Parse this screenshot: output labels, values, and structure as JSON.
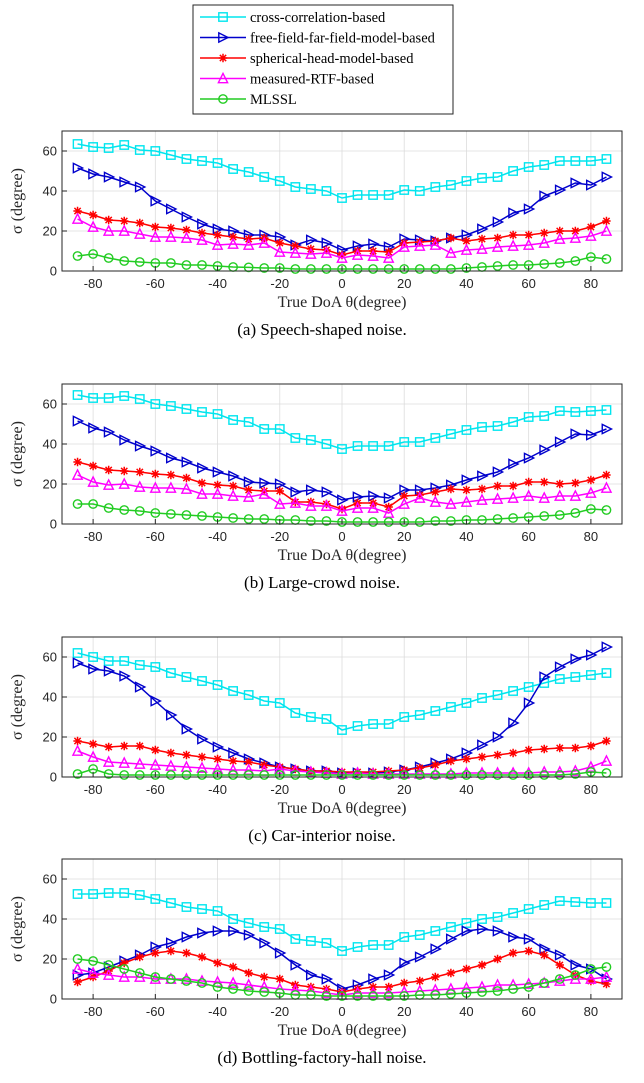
{
  "legend": {
    "entries": [
      {
        "name": "cross-correlation-based",
        "color": "#00e5ee",
        "marker": "square"
      },
      {
        "name": "free-field-far-field-model-based",
        "color": "#0000cc",
        "marker": "triangle-right"
      },
      {
        "name": "spherical-head-model-based",
        "color": "#ff0000",
        "marker": "asterisk"
      },
      {
        "name": "measured-RTF-based",
        "color": "#ff00ff",
        "marker": "triangle-up"
      },
      {
        "name": "MLSSL",
        "color": "#22cc22",
        "marker": "circle"
      }
    ]
  },
  "chart_data": [
    {
      "type": "line",
      "caption": "(a) Speech-shaped noise.",
      "xlabel": "True DoA θ(degree)",
      "ylabel": "σ (degree)",
      "xlim": [
        -90,
        90
      ],
      "ylim": [
        0,
        70
      ],
      "xticks": [
        -80,
        -60,
        -40,
        -20,
        0,
        20,
        40,
        60,
        80
      ],
      "yticks": [
        0,
        20,
        40,
        60
      ],
      "grid": true,
      "x": [
        -85,
        -80,
        -75,
        -70,
        -65,
        -60,
        -55,
        -50,
        -45,
        -40,
        -35,
        -30,
        -25,
        -20,
        -15,
        -10,
        -5,
        0,
        5,
        10,
        15,
        20,
        25,
        30,
        35,
        40,
        45,
        50,
        55,
        60,
        65,
        70,
        75,
        80,
        85
      ],
      "series": [
        {
          "name": "cross-correlation-based",
          "values": [
            63.5,
            62,
            61.5,
            63,
            60.5,
            60,
            58,
            56,
            55,
            54,
            51,
            49.5,
            47,
            45,
            42,
            41,
            40,
            36.5,
            38,
            38,
            38,
            40.5,
            40,
            42,
            43,
            45,
            46.5,
            47,
            50,
            52,
            53,
            55,
            55,
            55,
            56
          ]
        },
        {
          "name": "free-field-far-field-model-based",
          "values": [
            51.5,
            48.5,
            47,
            44.5,
            42,
            35,
            31,
            27,
            23.5,
            21,
            20,
            18,
            18,
            17,
            13,
            15.5,
            14,
            10.5,
            12.5,
            13.5,
            12,
            16,
            15.5,
            15,
            16.5,
            18,
            21,
            24.5,
            29,
            31,
            37.5,
            40.5,
            44,
            43,
            47
          ]
        },
        {
          "name": "spherical-head-model-based",
          "values": [
            30,
            28,
            25.5,
            25,
            24,
            22,
            21.5,
            20.5,
            19,
            18,
            17,
            16,
            16.5,
            14,
            12.5,
            11,
            10.5,
            8,
            10,
            10,
            9.5,
            14,
            14.5,
            15,
            16.5,
            15,
            16,
            16.5,
            18,
            18,
            19,
            20,
            20,
            22,
            25
          ]
        },
        {
          "name": "measured-RTF-based",
          "values": [
            26,
            22,
            20,
            20,
            18.5,
            17,
            17,
            16.5,
            15.5,
            13,
            13.5,
            13,
            14,
            9.5,
            9,
            8.5,
            9,
            6.5,
            8,
            7.5,
            6.5,
            12,
            12.5,
            13,
            9,
            10.5,
            11,
            12,
            12.5,
            13,
            14,
            16,
            16.5,
            17.5,
            20
          ]
        },
        {
          "name": "MLSSL",
          "values": [
            7.5,
            8.5,
            6.5,
            5,
            4.5,
            4,
            4,
            3,
            3,
            2.5,
            2,
            1.8,
            1.5,
            1.5,
            1,
            1,
            1,
            1,
            1,
            1,
            1,
            1,
            1,
            1,
            1,
            1.5,
            2,
            2.5,
            3,
            3,
            3.5,
            4,
            5,
            7,
            6
          ]
        }
      ]
    },
    {
      "type": "line",
      "caption": "(b) Large-crowd noise.",
      "xlabel": "True DoA θ(degree)",
      "ylabel": "σ (degree)",
      "xlim": [
        -90,
        90
      ],
      "ylim": [
        0,
        70
      ],
      "xticks": [
        -80,
        -60,
        -40,
        -20,
        0,
        20,
        40,
        60,
        80
      ],
      "yticks": [
        0,
        20,
        40,
        60
      ],
      "grid": true,
      "x": [
        -85,
        -80,
        -75,
        -70,
        -65,
        -60,
        -55,
        -50,
        -45,
        -40,
        -35,
        -30,
        -25,
        -20,
        -15,
        -10,
        -5,
        0,
        5,
        10,
        15,
        20,
        25,
        30,
        35,
        40,
        45,
        50,
        55,
        60,
        65,
        70,
        75,
        80,
        85
      ],
      "series": [
        {
          "name": "cross-correlation-based",
          "values": [
            64.5,
            63,
            63,
            64,
            62.5,
            60,
            59,
            57.5,
            56,
            55,
            52,
            51,
            47.5,
            47.5,
            43,
            42,
            40,
            37.5,
            39,
            39,
            39,
            41,
            41,
            43,
            45,
            47,
            48.5,
            49,
            51,
            53.5,
            54,
            56.5,
            56,
            56.5,
            57
          ]
        },
        {
          "name": "free-field-far-field-model-based",
          "values": [
            51.5,
            48,
            46,
            42,
            39,
            36.5,
            33,
            31,
            28,
            26,
            24,
            21,
            20.5,
            20,
            16,
            17,
            16,
            12,
            13.5,
            14,
            13,
            17,
            17,
            18,
            19.5,
            22,
            24,
            26,
            30,
            33,
            37,
            41,
            45,
            44.5,
            47.5
          ]
        },
        {
          "name": "spherical-head-model-based",
          "values": [
            31,
            29,
            27,
            26.5,
            26,
            25,
            24.5,
            23,
            20.5,
            19.5,
            19,
            17,
            16.5,
            16.5,
            11,
            11,
            10,
            7.5,
            10.5,
            10.5,
            8.5,
            14,
            14.5,
            16,
            17.5,
            17,
            17.5,
            19,
            19,
            21,
            21,
            20,
            20.5,
            22,
            24.5
          ]
        },
        {
          "name": "measured-RTF-based",
          "values": [
            24.5,
            21,
            19.5,
            20,
            18.5,
            18,
            18,
            17.5,
            15,
            15,
            14,
            13.5,
            15,
            10,
            10.5,
            9,
            9,
            6.5,
            8,
            8,
            5.5,
            10,
            13,
            11,
            10,
            11,
            12,
            12.5,
            13,
            14,
            13,
            14,
            14,
            15.5,
            18
          ]
        },
        {
          "name": "MLSSL",
          "values": [
            10,
            10,
            8,
            7,
            6.5,
            5.5,
            5,
            4.5,
            4,
            3.5,
            3,
            2.5,
            2.5,
            2,
            2,
            1.5,
            1.5,
            1,
            1,
            1,
            1,
            1,
            1,
            1.5,
            1.5,
            2,
            2,
            2.5,
            3,
            3.5,
            4,
            4.5,
            5.5,
            7.5,
            7
          ]
        }
      ]
    },
    {
      "type": "line",
      "caption": "(c) Car-interior noise.",
      "xlabel": "True DoA θ(degree)",
      "ylabel": "σ (degree)",
      "xlim": [
        -90,
        90
      ],
      "ylim": [
        0,
        70
      ],
      "xticks": [
        -80,
        -60,
        -40,
        -20,
        0,
        20,
        40,
        60,
        80
      ],
      "yticks": [
        0,
        20,
        40,
        60
      ],
      "grid": true,
      "x": [
        -85,
        -80,
        -75,
        -70,
        -65,
        -60,
        -55,
        -50,
        -45,
        -40,
        -35,
        -30,
        -25,
        -20,
        -15,
        -10,
        -5,
        0,
        5,
        10,
        15,
        20,
        25,
        30,
        35,
        40,
        45,
        50,
        55,
        60,
        65,
        70,
        75,
        80,
        85
      ],
      "series": [
        {
          "name": "cross-correlation-based",
          "values": [
            62,
            60,
            58,
            58,
            56,
            55,
            52,
            50,
            48,
            46,
            43,
            41,
            38,
            37,
            32,
            30,
            29,
            23.5,
            25.5,
            26.5,
            26.5,
            30,
            31,
            33,
            35,
            37,
            39.5,
            41,
            43,
            45,
            47,
            49,
            50,
            51,
            52
          ]
        },
        {
          "name": "free-field-far-field-model-based",
          "values": [
            57,
            54,
            53,
            50.5,
            45,
            38,
            31,
            24,
            19,
            15,
            12,
            9,
            7,
            5,
            4,
            3,
            3,
            2,
            2,
            2,
            2.5,
            3.5,
            5,
            7,
            9,
            12,
            16,
            20,
            27,
            37,
            50,
            55,
            59,
            61,
            65
          ]
        },
        {
          "name": "spherical-head-model-based",
          "values": [
            18,
            16.5,
            15,
            15.5,
            15.5,
            13.5,
            12,
            11,
            10,
            9,
            8,
            7.5,
            6,
            5,
            4,
            3,
            3,
            2.5,
            2.5,
            2.5,
            3,
            3.5,
            4.5,
            6,
            8,
            9,
            10,
            11,
            12,
            13.5,
            14,
            14.5,
            14.5,
            15.5,
            18
          ]
        },
        {
          "name": "measured-RTF-based",
          "values": [
            13,
            10,
            7.5,
            7,
            6.5,
            6,
            5.5,
            5,
            4.5,
            4,
            3.5,
            3.5,
            3,
            4,
            3,
            2.5,
            2,
            1.5,
            2,
            1.5,
            1.5,
            1.5,
            1.5,
            1.5,
            1.5,
            2,
            2,
            2,
            2,
            2,
            2.5,
            2.5,
            3,
            5,
            8
          ]
        },
        {
          "name": "MLSSL",
          "values": [
            1.5,
            4,
            1.5,
            1,
            1,
            1,
            1,
            1,
            1,
            1,
            1,
            1,
            1,
            1,
            1,
            1,
            1,
            1,
            1,
            1,
            1,
            1,
            1,
            1,
            1,
            1,
            1,
            1,
            1,
            1,
            1,
            1,
            1.5,
            2.5,
            2
          ]
        }
      ]
    },
    {
      "type": "line",
      "caption": "(d) Bottling-factory-hall noise.",
      "xlabel": "True DoA θ(degree)",
      "ylabel": "σ (degree)",
      "xlim": [
        -90,
        90
      ],
      "ylim": [
        0,
        70
      ],
      "xticks": [
        -80,
        -60,
        -40,
        -20,
        0,
        20,
        40,
        60,
        80
      ],
      "yticks": [
        0,
        20,
        40,
        60
      ],
      "grid": true,
      "x": [
        -85,
        -80,
        -75,
        -70,
        -65,
        -60,
        -55,
        -50,
        -45,
        -40,
        -35,
        -30,
        -25,
        -20,
        -15,
        -10,
        -5,
        0,
        5,
        10,
        15,
        20,
        25,
        30,
        35,
        40,
        45,
        50,
        55,
        60,
        65,
        70,
        75,
        80,
        85
      ],
      "series": [
        {
          "name": "cross-correlation-based",
          "values": [
            52.5,
            52.5,
            53,
            53,
            52,
            50,
            48,
            46,
            45,
            44,
            40,
            38,
            36,
            35,
            30,
            29,
            28,
            24,
            26,
            27,
            27,
            31,
            32,
            34,
            36,
            38,
            40,
            41,
            43,
            45,
            47,
            49,
            48.5,
            48,
            48
          ]
        },
        {
          "name": "free-field-far-field-model-based",
          "values": [
            12,
            13,
            16,
            19,
            22,
            26,
            28,
            31,
            33,
            34,
            34,
            32,
            28,
            23,
            17,
            12,
            10,
            5,
            7,
            10,
            12,
            18,
            21,
            25,
            30,
            34,
            35,
            34,
            31,
            30,
            25,
            22,
            17,
            15,
            10
          ]
        },
        {
          "name": "spherical-head-model-based",
          "values": [
            8.5,
            11,
            14,
            18,
            21,
            23,
            24,
            23,
            21,
            18,
            16,
            13,
            11,
            10,
            7,
            6,
            5,
            3.5,
            5,
            6,
            6,
            8,
            9,
            11,
            13,
            15,
            17,
            20,
            23,
            24,
            22,
            17,
            12,
            9,
            7.5
          ]
        },
        {
          "name": "measured-RTF-based",
          "values": [
            15,
            13,
            12,
            11,
            11,
            10,
            10,
            10,
            9,
            8.5,
            8,
            7,
            6,
            5,
            4.5,
            4,
            3,
            2,
            3,
            3,
            3,
            3.5,
            4,
            4.5,
            5,
            5.5,
            6,
            7,
            7,
            7.5,
            8,
            9,
            10,
            10,
            11
          ]
        },
        {
          "name": "MLSSL",
          "values": [
            20,
            19,
            17,
            15,
            13,
            11,
            10,
            9,
            8,
            6,
            5,
            4,
            3.5,
            3,
            2,
            2,
            1.5,
            1.5,
            1.5,
            1.5,
            1.5,
            1.5,
            2,
            2,
            2.5,
            3,
            3.5,
            4,
            5,
            6,
            8,
            10,
            12,
            15,
            16
          ]
        }
      ]
    }
  ]
}
